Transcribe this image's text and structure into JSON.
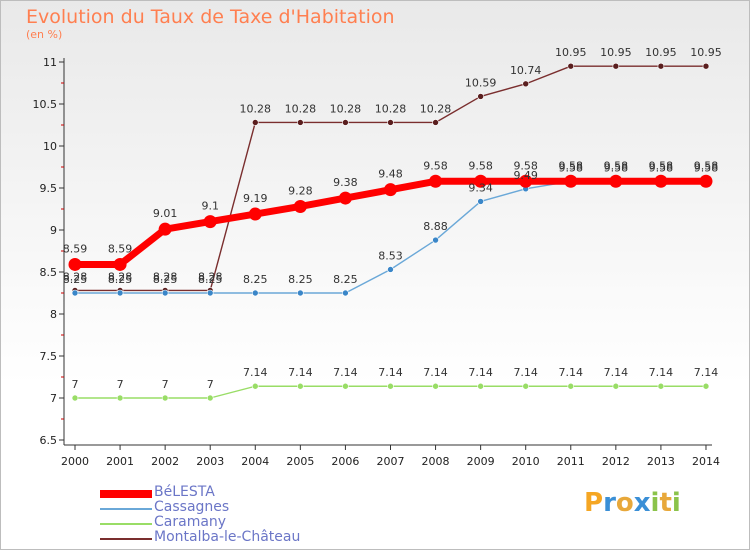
{
  "title": "Evolution du Taux de Taxe d'Habitation",
  "subtitle": "(en %)",
  "logo": {
    "letters": [
      "P",
      "r",
      "o",
      "x",
      "i",
      "t",
      "i"
    ],
    "colors": [
      "#f5a623",
      "#3a8fd6",
      "#e8a83a",
      "#3a8fd6",
      "#8bc34a",
      "#e8a83a",
      "#8bc34a"
    ]
  },
  "chart_data": {
    "type": "line",
    "x": [
      "2000",
      "2001",
      "2002",
      "2003",
      "2004",
      "2005",
      "2006",
      "2007",
      "2008",
      "2009",
      "2010",
      "2011",
      "2012",
      "2013",
      "2014"
    ],
    "ylim": [
      6.5,
      11
    ],
    "yticks": [
      "6.5",
      "7",
      "7.5",
      "8",
      "8.5",
      "9",
      "9.5",
      "10",
      "10.5",
      "11"
    ],
    "series": [
      {
        "name": "BéLESTA",
        "color": "#ff0000",
        "values": [
          8.59,
          8.59,
          9.01,
          9.1,
          9.19,
          9.28,
          9.38,
          9.48,
          9.58,
          9.58,
          9.58,
          9.58,
          9.58,
          9.58,
          9.58
        ],
        "labels": [
          "8.59",
          "8.59",
          "9.01",
          "9.1",
          "9.19",
          "9.28",
          "9.38",
          "9.48",
          "9.58",
          "9.58",
          "9.58",
          "9.58",
          "9.58",
          "9.58",
          "9.58"
        ]
      },
      {
        "name": "Cassagnes",
        "color": "#6aa8d8",
        "values": [
          8.25,
          8.25,
          8.25,
          8.25,
          8.25,
          8.25,
          8.25,
          8.53,
          8.88,
          9.34,
          9.49,
          9.58,
          9.58,
          9.58,
          9.58
        ],
        "labels": [
          "8.25",
          "8.25",
          "8.25",
          "8.25",
          "8.25",
          "8.25",
          "8.25",
          "8.53",
          "8.88",
          "9.34",
          "9.49",
          "9.58",
          "9.58",
          "9.58",
          "9.58"
        ]
      },
      {
        "name": "Caramany",
        "color": "#99dd66",
        "values": [
          7,
          7,
          7,
          7,
          7.14,
          7.14,
          7.14,
          7.14,
          7.14,
          7.14,
          7.14,
          7.14,
          7.14,
          7.14,
          7.14
        ],
        "labels": [
          "7",
          "7",
          "7",
          "7",
          "7.14",
          "7.14",
          "7.14",
          "7.14",
          "7.14",
          "7.14",
          "7.14",
          "7.14",
          "7.14",
          "7.14",
          "7.14"
        ]
      },
      {
        "name": "Montalba-le-Château",
        "color": "#7a2e2e",
        "values": [
          8.28,
          8.28,
          8.28,
          8.28,
          10.28,
          10.28,
          10.28,
          10.28,
          10.28,
          10.59,
          10.74,
          10.95,
          10.95,
          10.95,
          10.95
        ],
        "labels": [
          "8.28",
          "8.28",
          "8.28",
          "8.28",
          "10.28",
          "10.28",
          "10.28",
          "10.28",
          "10.28",
          "10.59",
          "10.74",
          "10.95",
          "10.95",
          "10.95",
          "10.95"
        ]
      }
    ]
  }
}
